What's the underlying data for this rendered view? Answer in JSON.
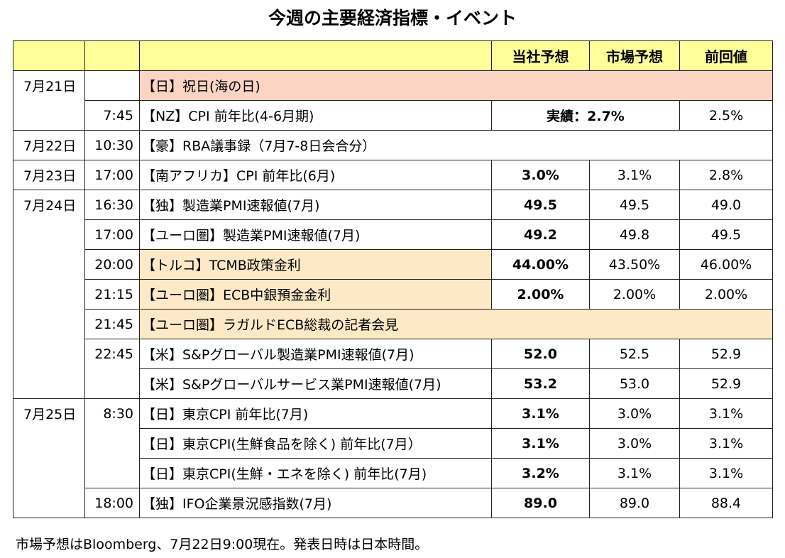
{
  "title": "今週の主要経済指標・イベント",
  "header": {
    "col_date": "",
    "col_time": "",
    "col_event": "",
    "col_company": "当社予想",
    "col_market": "市場予想",
    "col_prev": "前回値"
  },
  "rows": [
    {
      "date": "7月21日",
      "time": "",
      "event": "【日】祝日(海の日)",
      "company": "",
      "market": "",
      "prev": ""
    },
    {
      "date": "",
      "time": "7:45",
      "event": "【NZ】CPI 前年比(4-6月期)",
      "company": "実績：2.7%",
      "market": "",
      "prev": "2.5%"
    },
    {
      "date": "7月22日",
      "time": "10:30",
      "event": "【豪】RBA議事録（7月7-8日会合分）",
      "company": "",
      "market": "",
      "prev": ""
    },
    {
      "date": "7月23日",
      "time": "17:00",
      "event": "【南アフリカ】CPI 前年比(6月)",
      "company": "3.0%",
      "market": "3.1%",
      "prev": "2.8%"
    },
    {
      "date": "7月24日",
      "time": "16:30",
      "event": "【独】製造業PMI速報値(7月)",
      "company": "49.5",
      "market": "49.5",
      "prev": "49.0"
    },
    {
      "date": "",
      "time": "17:00",
      "event": "【ユーロ圏】製造業PMI速報値(7月)",
      "company": "49.2",
      "market": "49.8",
      "prev": "49.5"
    },
    {
      "date": "",
      "time": "20:00",
      "event": "【トルコ】TCMB政策金利",
      "company": "44.00%",
      "market": "43.50%",
      "prev": "46.00%"
    },
    {
      "date": "",
      "time": "21:15",
      "event": "【ユーロ圏】ECB中銀預金金利",
      "company": "2.00%",
      "market": "2.00%",
      "prev": "2.00%"
    },
    {
      "date": "",
      "time": "21:45",
      "event": "【ユーロ圏】ラガルドECB総裁の記者会見",
      "company": "",
      "market": "",
      "prev": ""
    },
    {
      "date": "",
      "time": "22:45",
      "event": "【米】S&Pグローバル製造業PMI速報値(7月)",
      "company": "52.0",
      "market": "52.5",
      "prev": "52.9"
    },
    {
      "date": "",
      "time": "",
      "event": "【米】S&Pグローバルサービス業PMI速報値(7月)",
      "company": "53.2",
      "market": "53.0",
      "prev": "52.9"
    },
    {
      "date": "7月25日",
      "time": "8:30",
      "event": "【日】東京CPI 前年比(7月)",
      "company": "3.1%",
      "market": "3.0%",
      "prev": "3.1%"
    },
    {
      "date": "",
      "time": "",
      "event": "【日】東京CPI(生鮮食品を除く) 前年比(7月）",
      "company": "3.1%",
      "market": "3.0%",
      "prev": "3.1%"
    },
    {
      "date": "",
      "time": "",
      "event": "【日】東京CPI(生鮮・エネを除く) 前年比(7月)",
      "company": "3.2%",
      "market": "3.1%",
      "prev": "3.1%"
    },
    {
      "date": "",
      "time": "18:00",
      "event": "【独】IFO企業景況感指数(7月)",
      "company": "89.0",
      "market": "89.0",
      "prev": "88.4"
    }
  ],
  "footer": "市場予想はBloomberg、7月22日9:00現在。発表日時は日本時間。",
  "colors": {
    "header_bg": "#ffff99",
    "holiday_bg": "#fbd4c4",
    "highlight_bg": "#fde9c6",
    "row_bg": "#ffffff"
  }
}
